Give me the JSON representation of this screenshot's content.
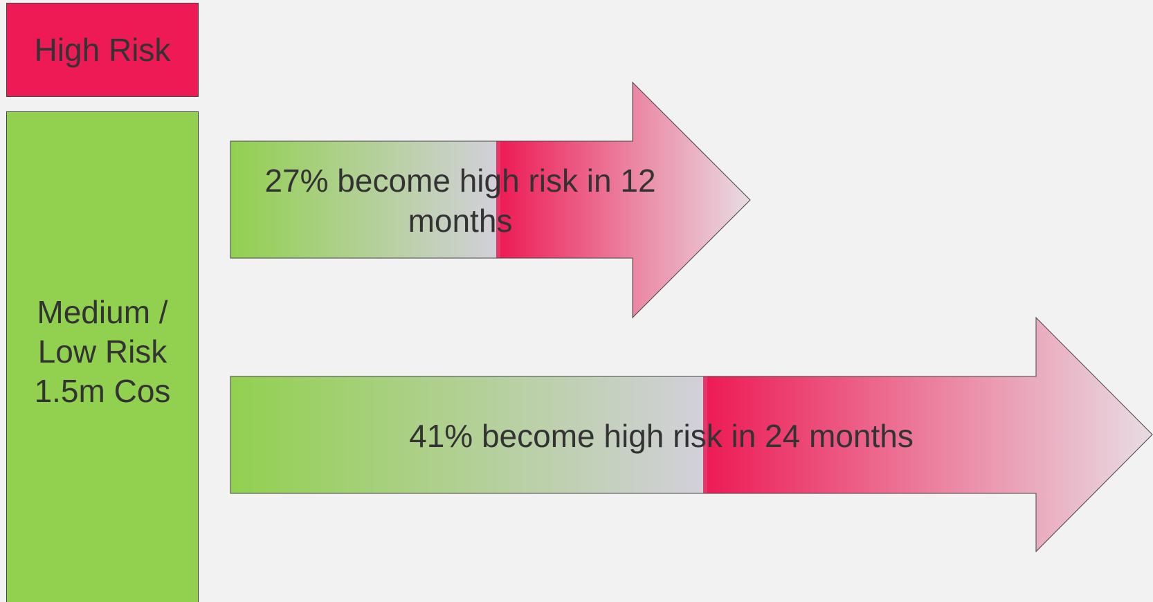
{
  "boxes": {
    "high_risk": "High Risk",
    "low_risk_line1": "Medium /",
    "low_risk_line2": "Low Risk",
    "low_risk_line3": "1.5m Cos"
  },
  "arrows": [
    {
      "text": "27% become high risk in 12 months"
    },
    {
      "text": "41% become high risk in 24 months"
    }
  ],
  "colors": {
    "background": "#f2f2f2",
    "high_risk": "#ed1a55",
    "low_risk": "#92d050",
    "text": "#333333"
  }
}
